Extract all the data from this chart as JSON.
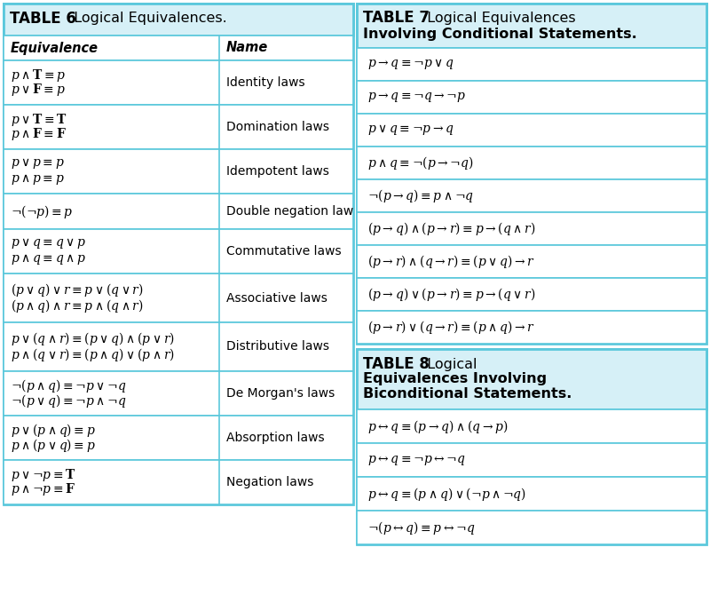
{
  "bg_color": "#ffffff",
  "border_color": "#5bc8dc",
  "header_bg": "#d6f0f7",
  "table6_title1": "TABLE 6",
  "table6_title2": "  Logical Equivalences.",
  "table7_title1": "TABLE 7",
  "table7_title2": "  Logical Equivalences",
  "table7_title3": "Involving Conditional Statements.",
  "table8_title1": "TABLE 8",
  "table8_title2": "  Logical",
  "table8_title3": "Equivalences Involving",
  "table8_title4": "Biconditional Statements.",
  "col6_header1": "Equivalence",
  "col6_header2": "Name",
  "table6_rows": [
    [
      "$p \\wedge \\mathbf{T} \\equiv p$",
      "$p \\vee \\mathbf{F} \\equiv p$",
      "Identity laws"
    ],
    [
      "$p \\vee \\mathbf{T} \\equiv \\mathbf{T}$",
      "$p \\wedge \\mathbf{F} \\equiv \\mathbf{F}$",
      "Domination laws"
    ],
    [
      "$p \\vee p \\equiv p$",
      "$p \\wedge p \\equiv p$",
      "Idempotent laws"
    ],
    [
      "$\\neg(\\neg p) \\equiv p$",
      "",
      "Double negation law"
    ],
    [
      "$p \\vee q \\equiv q \\vee p$",
      "$p \\wedge q \\equiv q \\wedge p$",
      "Commutative laws"
    ],
    [
      "$(p \\vee q) \\vee r \\equiv p \\vee (q \\vee r)$",
      "$(p \\wedge q) \\wedge r \\equiv p \\wedge (q \\wedge r)$",
      "Associative laws"
    ],
    [
      "$p \\vee (q \\wedge r) \\equiv (p \\vee q) \\wedge (p \\vee r)$",
      "$p \\wedge (q \\vee r) \\equiv (p \\wedge q) \\vee (p \\wedge r)$",
      "Distributive laws"
    ],
    [
      "$\\neg(p \\wedge q) \\equiv \\neg p \\vee \\neg q$",
      "$\\neg(p \\vee q) \\equiv \\neg p \\wedge \\neg q$",
      "De Morgan's laws"
    ],
    [
      "$p \\vee (p \\wedge q) \\equiv p$",
      "$p \\wedge (p \\vee q) \\equiv p$",
      "Absorption laws"
    ],
    [
      "$p \\vee \\neg p \\equiv \\mathbf{T}$",
      "$p \\wedge \\neg p \\equiv \\mathbf{F}$",
      "Negation laws"
    ]
  ],
  "table7_rows": [
    "$p \\rightarrow q \\equiv \\neg p \\vee q$",
    "$p \\rightarrow q \\equiv \\neg q \\rightarrow \\neg p$",
    "$p \\vee q \\equiv \\neg p \\rightarrow q$",
    "$p \\wedge q \\equiv \\neg(p \\rightarrow \\neg q)$",
    "$\\neg(p \\rightarrow q) \\equiv p \\wedge \\neg q$",
    "$(p \\rightarrow q) \\wedge (p \\rightarrow r) \\equiv p \\rightarrow (q \\wedge r)$",
    "$(p \\rightarrow r) \\wedge (q \\rightarrow r) \\equiv (p \\vee q) \\rightarrow r$",
    "$(p \\rightarrow q) \\vee (p \\rightarrow r) \\equiv p \\rightarrow (q \\vee r)$",
    "$(p \\rightarrow r) \\vee (q \\rightarrow r) \\equiv (p \\wedge q) \\rightarrow r$"
  ],
  "table8_rows": [
    "$p \\leftrightarrow q \\equiv (p \\rightarrow q) \\wedge (q \\rightarrow p)$",
    "$p \\leftrightarrow q \\equiv \\neg p \\leftrightarrow \\neg q$",
    "$p \\leftrightarrow q \\equiv (p \\wedge q) \\vee (\\neg p \\wedge \\neg q)$",
    "$\\neg(p \\leftrightarrow q) \\equiv p \\leftrightarrow \\neg q$"
  ]
}
